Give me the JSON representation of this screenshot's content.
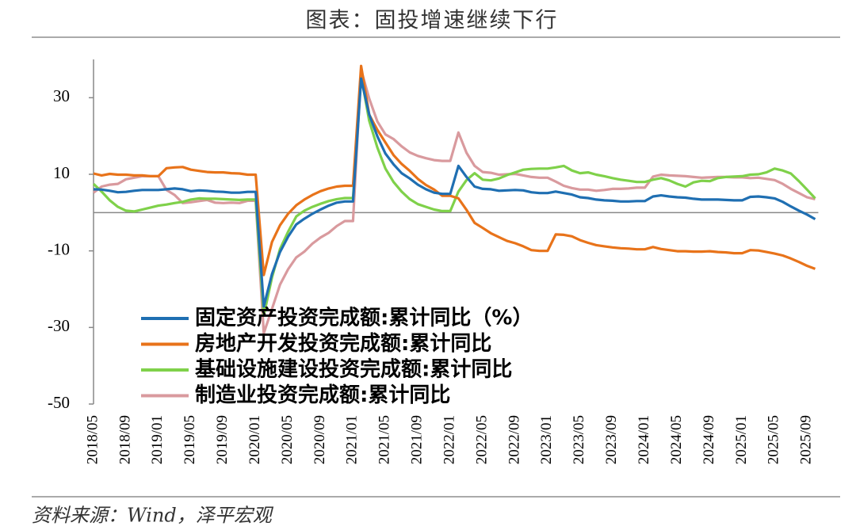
{
  "chart_data": {
    "type": "line",
    "title": "图表：固投增速继续下行",
    "source": "资料来源：Wind，泽平宏观",
    "categories": [
      "2018/05",
      null,
      null,
      null,
      "2018/09",
      null,
      null,
      null,
      "2019/01",
      null,
      null,
      null,
      "2019/05",
      null,
      null,
      null,
      "2019/09",
      null,
      null,
      null,
      "2020/01",
      null,
      null,
      null,
      "2020/05",
      null,
      null,
      null,
      "2020/09",
      null,
      null,
      null,
      "2021/01",
      null,
      null,
      null,
      "2021/05",
      null,
      null,
      null,
      "2021/09",
      null,
      null,
      null,
      "2022/01",
      null,
      null,
      null,
      "2022/05",
      null,
      null,
      null,
      "2022/09",
      null,
      null,
      null,
      "2023/01",
      null,
      null,
      null,
      "2023/05",
      null,
      null,
      null,
      "2023/09",
      null,
      null,
      null,
      "2024/01",
      null,
      null,
      null,
      "2024/05",
      null,
      null,
      null,
      "2024/09",
      null,
      null,
      null,
      "2025/01",
      null,
      null,
      null,
      "2025/05",
      null,
      null,
      null,
      "2025/09",
      null
    ],
    "series": [
      {
        "name": "固定资产投资完成额:累计同比（%）",
        "color": "#1f6fb2",
        "values": [
          6.1,
          6.0,
          5.7,
          5.3,
          5.4,
          5.7,
          5.9,
          5.9,
          5.9,
          6.1,
          6.3,
          6.1,
          5.6,
          5.8,
          5.7,
          5.5,
          5.4,
          5.2,
          5.2,
          5.4,
          5.4,
          -24.5,
          -16.1,
          -10.3,
          -6.3,
          -3.1,
          -1.6,
          -0.3,
          0.8,
          1.8,
          2.6,
          2.9,
          2.9,
          35.0,
          25.6,
          19.9,
          15.4,
          12.6,
          10.3,
          8.9,
          7.3,
          6.1,
          5.2,
          4.9,
          4.9,
          12.2,
          9.3,
          6.8,
          6.2,
          6.1,
          5.7,
          5.8,
          5.9,
          5.8,
          5.3,
          5.1,
          5.1,
          5.5,
          5.1,
          4.7,
          4.0,
          3.8,
          3.4,
          3.2,
          3.1,
          2.9,
          2.9,
          3.0,
          3.0,
          4.2,
          4.5,
          4.2,
          4.0,
          3.9,
          3.6,
          3.4,
          3.4,
          3.4,
          3.3,
          3.2,
          3.2,
          4.1,
          4.2,
          4.0,
          3.7,
          2.8,
          1.6,
          0.5,
          -0.5,
          -1.7
        ]
      },
      {
        "name": "房地产开发投资完成额:累计同比",
        "color": "#e8731a",
        "values": [
          10.2,
          9.7,
          10.1,
          9.9,
          9.9,
          9.7,
          9.7,
          9.5,
          9.5,
          11.6,
          11.8,
          11.9,
          11.2,
          10.9,
          10.6,
          10.5,
          10.5,
          10.3,
          10.2,
          9.9,
          9.9,
          -16.3,
          -7.7,
          -3.3,
          -0.3,
          1.9,
          3.4,
          4.6,
          5.6,
          6.3,
          6.8,
          7.0,
          7.0,
          38.3,
          25.6,
          21.6,
          18.3,
          15.0,
          12.7,
          10.9,
          8.8,
          7.2,
          6.0,
          4.4,
          4.4,
          3.7,
          0.7,
          -2.7,
          -4.0,
          -5.4,
          -6.4,
          -7.4,
          -8.0,
          -8.8,
          -9.8,
          -10.0,
          -10.0,
          -5.7,
          -5.8,
          -6.2,
          -7.2,
          -7.9,
          -8.5,
          -8.8,
          -9.1,
          -9.3,
          -9.4,
          -9.6,
          -9.6,
          -9.0,
          -9.5,
          -9.8,
          -10.1,
          -10.1,
          -10.2,
          -10.2,
          -10.1,
          -10.3,
          -10.4,
          -10.6,
          -10.6,
          -9.8,
          -9.9,
          -10.3,
          -10.7,
          -11.2,
          -12.0,
          -12.9,
          -13.9,
          -14.7
        ]
      },
      {
        "name": "基础设施建设投资完成额:累计同比",
        "color": "#7fd14a",
        "values": [
          7.5,
          5.5,
          3.2,
          1.5,
          0.5,
          0.3,
          0.8,
          1.3,
          1.8,
          2.1,
          2.5,
          2.8,
          3.4,
          3.7,
          3.6,
          3.6,
          3.5,
          3.4,
          3.3,
          3.4,
          3.4,
          -26.9,
          -17.0,
          -9.5,
          -5.0,
          -1.0,
          0.5,
          1.5,
          2.3,
          3.0,
          3.5,
          3.8,
          3.8,
          35.7,
          24.0,
          17.0,
          11.5,
          8.0,
          5.5,
          3.5,
          2.2,
          1.5,
          0.8,
          0.4,
          0.4,
          5.5,
          8.5,
          10.3,
          8.6,
          8.4,
          8.9,
          9.8,
          10.5,
          11.2,
          11.4,
          11.5,
          11.5,
          11.8,
          12.2,
          11.0,
          10.3,
          10.5,
          9.9,
          9.5,
          9.0,
          8.6,
          8.3,
          8.0,
          8.0,
          8.6,
          9.0,
          8.4,
          7.5,
          6.8,
          7.9,
          8.3,
          8.2,
          9.0,
          9.3,
          9.4,
          9.5,
          9.9,
          10.0,
          10.5,
          11.5,
          11.0,
          10.2,
          8.2,
          6.0,
          3.7
        ]
      },
      {
        "name": "制造业投资完成额:累计同比",
        "color": "#d99a9e",
        "values": [
          5.2,
          6.8,
          7.3,
          7.5,
          8.7,
          9.1,
          9.5,
          9.5,
          9.5,
          5.9,
          4.6,
          2.5,
          2.7,
          3.0,
          3.3,
          2.6,
          2.5,
          2.6,
          2.5,
          3.1,
          3.1,
          -31.5,
          -25.2,
          -18.8,
          -14.8,
          -11.7,
          -10.2,
          -8.1,
          -6.5,
          -5.3,
          -3.5,
          -2.2,
          -2.2,
          37.3,
          29.8,
          23.8,
          20.4,
          19.2,
          17.3,
          15.7,
          14.8,
          14.2,
          13.7,
          13.5,
          13.5,
          20.9,
          15.6,
          12.2,
          10.6,
          10.4,
          9.9,
          10.0,
          10.1,
          9.7,
          9.3,
          9.1,
          9.1,
          8.1,
          7.0,
          6.4,
          6.0,
          6.0,
          5.7,
          5.9,
          6.2,
          6.2,
          6.3,
          6.5,
          6.5,
          9.4,
          9.9,
          9.7,
          9.6,
          9.5,
          9.3,
          9.1,
          9.2,
          9.3,
          9.3,
          9.2,
          9.2,
          9.0,
          9.1,
          8.8,
          8.5,
          7.5,
          6.2,
          5.1,
          4.0,
          3.5
        ]
      }
    ],
    "ylim": [
      -50,
      40
    ],
    "yticks": [
      -50,
      -30,
      -10,
      10,
      30
    ],
    "zero_line": true,
    "legend": "lower-left"
  }
}
